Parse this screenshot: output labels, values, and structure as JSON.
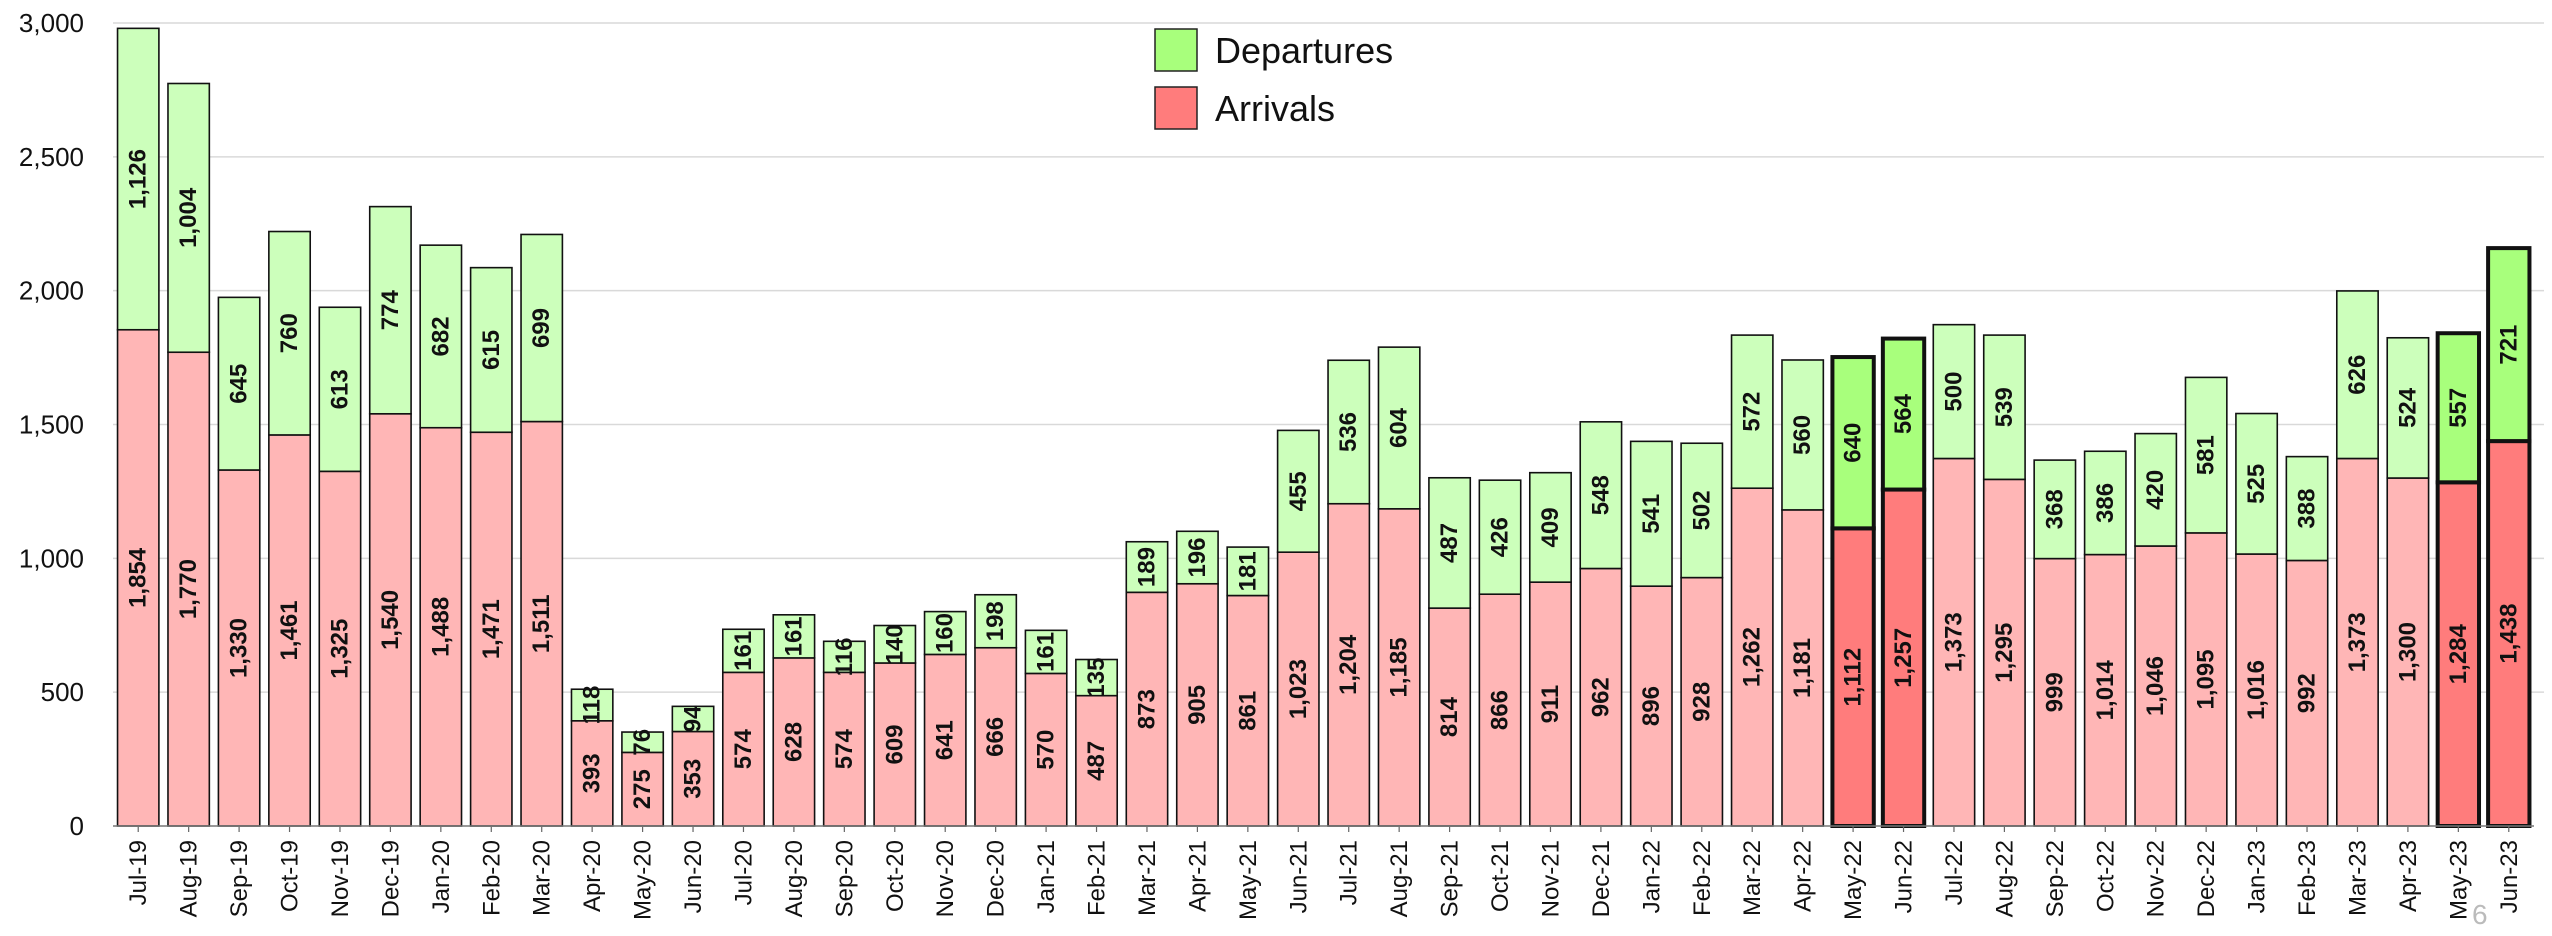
{
  "chart_data": {
    "type": "bar",
    "stacked": true,
    "categories": [
      "Jul-19",
      "Aug-19",
      "Sep-19",
      "Oct-19",
      "Nov-19",
      "Dec-19",
      "Jan-20",
      "Feb-20",
      "Mar-20",
      "Apr-20",
      "May-20",
      "Jun-20",
      "Jul-20",
      "Aug-20",
      "Sep-20",
      "Oct-20",
      "Nov-20",
      "Dec-20",
      "Jan-21",
      "Feb-21",
      "Mar-21",
      "Apr-21",
      "May-21",
      "Jun-21",
      "Jul-21",
      "Aug-21",
      "Sep-21",
      "Oct-21",
      "Nov-21",
      "Dec-21",
      "Jan-22",
      "Feb-22",
      "Mar-22",
      "Apr-22",
      "May-22",
      "Jun-22",
      "Jul-22",
      "Aug-22",
      "Sep-22",
      "Oct-22",
      "Nov-22",
      "Dec-22",
      "Jan-23",
      "Feb-23",
      "Mar-23",
      "Apr-23",
      "May-23",
      "Jun-23"
    ],
    "series": [
      {
        "name": "Arrivals",
        "color": "#ffb6b6",
        "highlight_color": "#ff7c7c",
        "values": [
          1854,
          1770,
          1330,
          1461,
          1325,
          1540,
          1488,
          1471,
          1511,
          393,
          275,
          353,
          574,
          628,
          574,
          609,
          641,
          666,
          570,
          487,
          873,
          905,
          861,
          1023,
          1204,
          1185,
          814,
          866,
          911,
          962,
          896,
          928,
          1262,
          1181,
          1112,
          1257,
          1373,
          1295,
          999,
          1014,
          1046,
          1095,
          1016,
          992,
          1373,
          1300,
          1284,
          1438
        ],
        "labels": [
          "1,854",
          "1,770",
          "1,330",
          "1,461",
          "1,325",
          "1,540",
          "1,488",
          "1,471",
          "1,511",
          "393",
          "275",
          "353",
          "574",
          "628",
          "574",
          "609",
          "641",
          "666",
          "570",
          "487",
          "873",
          "905",
          "861",
          "1,023",
          "1,204",
          "1,185",
          "814",
          "866",
          "911",
          "962",
          "896",
          "928",
          "1,262",
          "1,181",
          "1,112",
          "1,257",
          "1,373",
          "1,295",
          "999",
          "1,014",
          "1,046",
          "1,095",
          "1,016",
          "992",
          "1,373",
          "1,300",
          "1,284",
          "1,438"
        ]
      },
      {
        "name": "Departures",
        "color": "#ccffbb",
        "highlight_color": "#a8ff7c",
        "values": [
          1126,
          1004,
          645,
          760,
          613,
          774,
          682,
          615,
          699,
          118,
          76,
          94,
          161,
          161,
          116,
          140,
          160,
          198,
          161,
          135,
          189,
          196,
          181,
          455,
          536,
          604,
          487,
          426,
          409,
          548,
          541,
          502,
          572,
          560,
          640,
          564,
          500,
          539,
          368,
          386,
          420,
          581,
          525,
          388,
          626,
          524,
          557,
          721
        ],
        "labels": [
          "1,126",
          "1,004",
          "645",
          "760",
          "613",
          "774",
          "682",
          "615",
          "699",
          "118",
          "76",
          "94",
          "161",
          "161",
          "116",
          "140",
          "160",
          "198",
          "161",
          "135",
          "189",
          "196",
          "181",
          "455",
          "536",
          "604",
          "487",
          "426",
          "409",
          "548",
          "541",
          "502",
          "572",
          "560",
          "640",
          "564",
          "500",
          "539",
          "368",
          "386",
          "420",
          "581",
          "525",
          "388",
          "626",
          "524",
          "557",
          "721"
        ]
      }
    ],
    "highlighted_categories": [
      "May-22",
      "Jun-22",
      "May-23",
      "Jun-23"
    ],
    "ylim": [
      0,
      3000
    ],
    "yticks": [
      0,
      500,
      1000,
      1500,
      2000,
      2500,
      3000
    ],
    "ytick_labels": [
      "0",
      "500",
      "1,000",
      "1,500",
      "2,000",
      "2,500",
      "3,000"
    ],
    "grid": true,
    "legend": {
      "position": "top-center",
      "entries": [
        {
          "label": "Departures",
          "color": "#a8ff7c"
        },
        {
          "label": "Arrivals",
          "color": "#ff7c7c"
        }
      ]
    },
    "title": "",
    "xlabel": "",
    "ylabel": ""
  },
  "page_number": "6"
}
